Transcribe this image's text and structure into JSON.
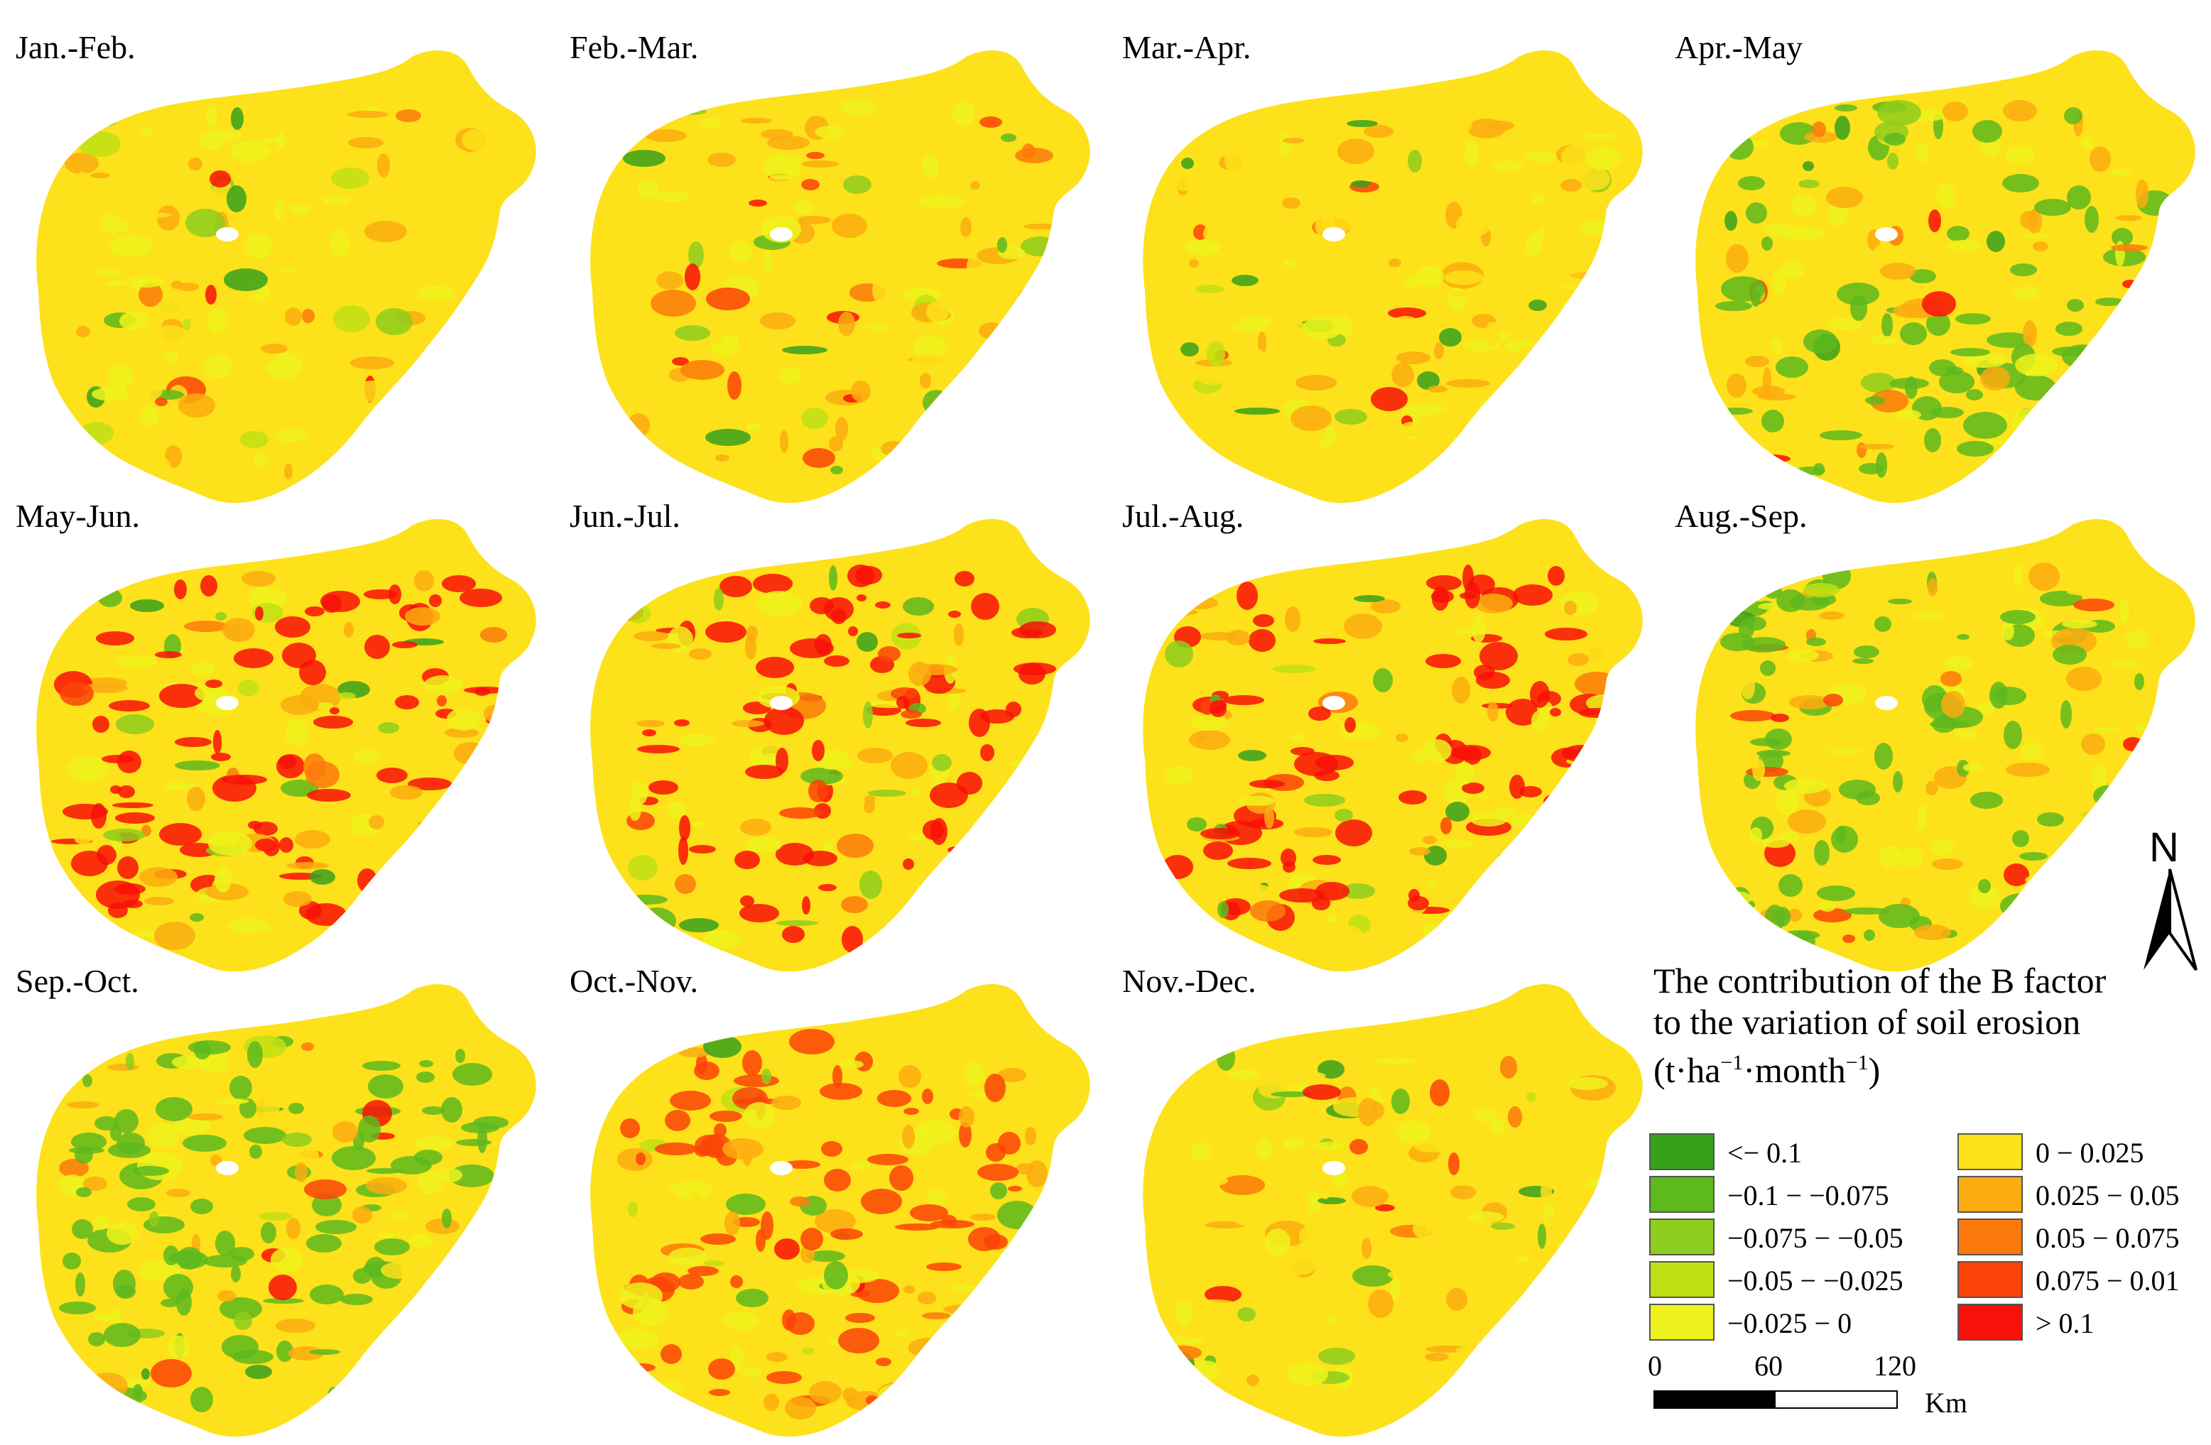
{
  "panels": [
    {
      "label": "Jan.-Feb.",
      "dominant": "0 − 0.025"
    },
    {
      "label": "Feb.-Mar.",
      "dominant": "0 − 0.025"
    },
    {
      "label": "Mar.-Apr.",
      "dominant": "0 − 0.025"
    },
    {
      "label": "Apr.-May",
      "dominant": "−0.1 − −0.075"
    },
    {
      "label": "May-Jun.",
      "dominant": "> 0.1"
    },
    {
      "label": "Jun.-Jul.",
      "dominant": "> 0.1"
    },
    {
      "label": "Jul.-Aug.",
      "dominant": "> 0.1"
    },
    {
      "label": "Aug.-Sep.",
      "dominant": "−0.1 − −0.075"
    },
    {
      "label": "Sep.-Oct.",
      "dominant": "−0.1 − −0.075"
    },
    {
      "label": "Oct.-Nov.",
      "dominant": "0.075 − 0.01"
    },
    {
      "label": "Nov.-Dec.",
      "dominant": "0 − 0.025"
    }
  ],
  "legend": {
    "title_line1": "The contribution of the B factor",
    "title_line2": "to the variation of soil erosion",
    "unit_open": "(t·ha",
    "unit_exp1": "−1",
    "unit_mid": "·month",
    "unit_exp2": "−1",
    "unit_close": ")",
    "classes": [
      {
        "label": "<− 0.1",
        "color": "#37a11c"
      },
      {
        "label": "−0.1 − −0.075",
        "color": "#5db91e"
      },
      {
        "label": "−0.075 − −0.05",
        "color": "#8dcd1d"
      },
      {
        "label": "−0.05 − −0.025",
        "color": "#bfe014"
      },
      {
        "label": "−0.025 − 0",
        "color": "#eef21c"
      },
      {
        "label": "0 − 0.025",
        "color": "#fde11a"
      },
      {
        "label": "0.025 − 0.05",
        "color": "#fcac10"
      },
      {
        "label": "0.05 − 0.075",
        "color": "#fc7a0c"
      },
      {
        "label": "0.075 − 0.01",
        "color": "#fb4308"
      },
      {
        "label": "> 0.1",
        "color": "#f81108"
      }
    ]
  },
  "scale": {
    "ticks": [
      "0",
      "60",
      "120"
    ],
    "unit": "Km"
  },
  "north": "N"
}
